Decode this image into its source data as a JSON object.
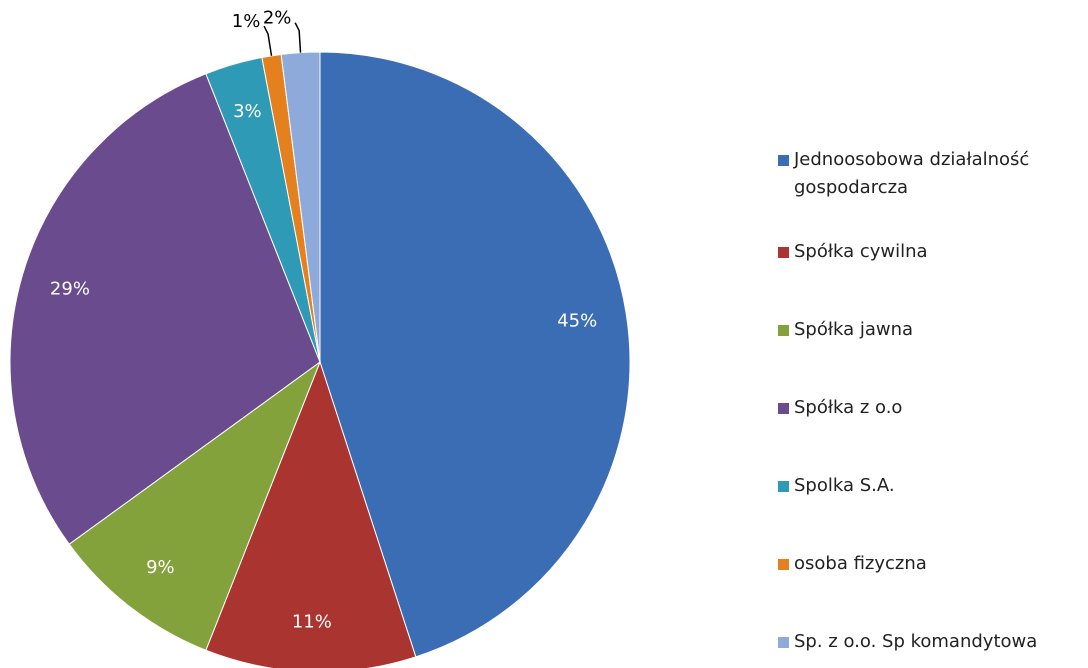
{
  "chart_data": {
    "type": "pie",
    "categories": [
      "Jednoosobowa działalność gospodarcza",
      "Spółka cywilna",
      "Spółka jawna",
      "Spółka z o.o",
      "Spolka S.A.",
      "osoba fizyczna",
      "Sp. z o.o. Sp komandytowa"
    ],
    "values": [
      45,
      11,
      9,
      29,
      3,
      1,
      2
    ],
    "value_labels": [
      "45%",
      "11%",
      "9%",
      "29%",
      "3%",
      "1%",
      "2%"
    ],
    "colors": [
      "#3a6db3",
      "#a93430",
      "#84a23c",
      "#694b8e",
      "#2f9ab6",
      "#e5801f",
      "#8eaadb"
    ],
    "legend": "right"
  }
}
